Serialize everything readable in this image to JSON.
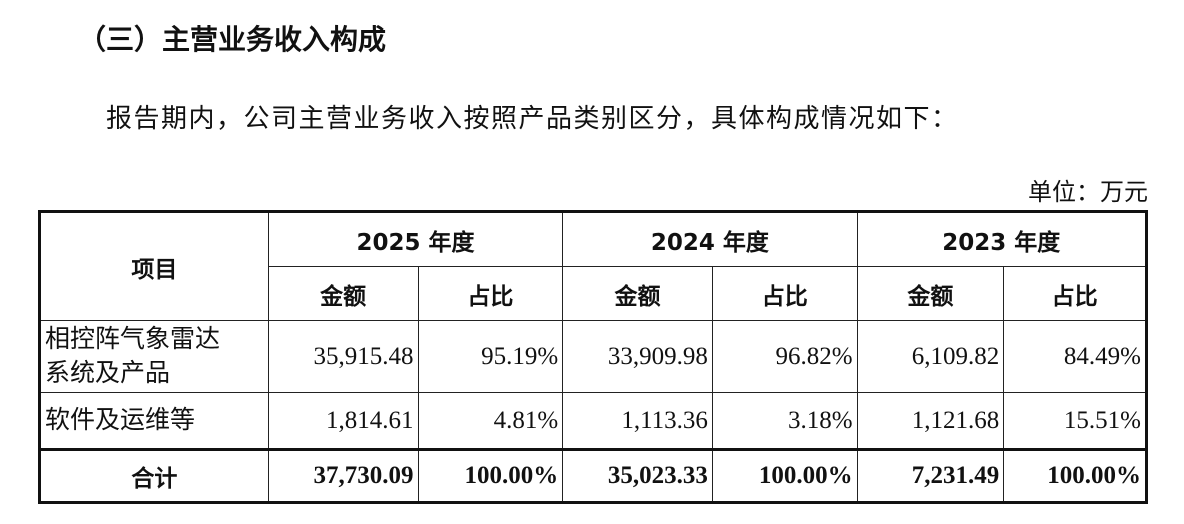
{
  "header": {
    "title": "（三）主营业务收入构成"
  },
  "intro": "报告期内，公司主营业务收入按照产品类别区分，具体构成情况如下：",
  "unit": "单位：万元",
  "table": {
    "item_header": "项目",
    "years": [
      {
        "year": "2025 年度",
        "amount_label": "金额",
        "share_label": "占比"
      },
      {
        "year": "2024 年度",
        "amount_label": "金额",
        "share_label": "占比"
      },
      {
        "year": "2023 年度",
        "amount_label": "金额",
        "share_label": "占比"
      }
    ],
    "rows": [
      {
        "item": "相控阵气象雷达系统及产品",
        "cells": [
          "35,915.48",
          "95.19%",
          "33,909.98",
          "96.82%",
          "6,109.82",
          "84.49%"
        ]
      },
      {
        "item": "软件及运维等",
        "cells": [
          "1,814.61",
          "4.81%",
          "1,113.36",
          "3.18%",
          "1,121.68",
          "15.51%"
        ]
      }
    ],
    "total": {
      "item": "合计",
      "cells": [
        "37,730.09",
        "100.00%",
        "35,023.33",
        "100.00%",
        "7,231.49",
        "100.00%"
      ]
    }
  }
}
